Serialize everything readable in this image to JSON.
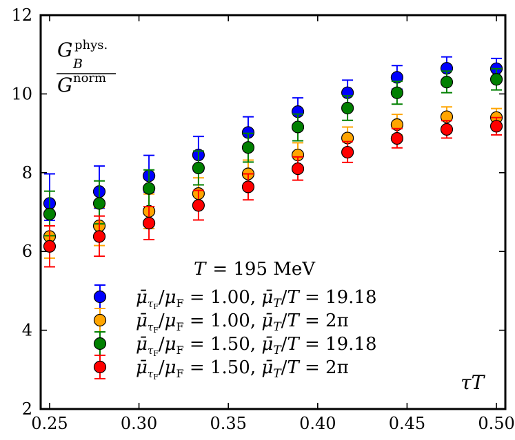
{
  "chart_data": {
    "type": "scatter",
    "title": "",
    "xlabel": "τT",
    "ylabel": "G_B^phys. / G^norm",
    "xlim": [
      0.245,
      0.505
    ],
    "ylim": [
      2,
      12
    ],
    "xticks": [
      "0.25",
      "0.30",
      "0.35",
      "0.40",
      "0.45",
      "0.50"
    ],
    "xtick_values": [
      0.25,
      0.3,
      0.35,
      0.4,
      0.45,
      0.5
    ],
    "yticks": [
      "2",
      "4",
      "6",
      "8",
      "10",
      "12"
    ],
    "ytick_values": [
      2,
      4,
      6,
      8,
      10,
      12
    ],
    "grid": false,
    "legend_placement": "bottom-left",
    "legend_title": {
      "lhs": "T",
      "rhs": "= 195 MeV"
    },
    "x": [
      0.25,
      0.2778,
      0.3056,
      0.3333,
      0.3611,
      0.3889,
      0.4167,
      0.4444,
      0.4722,
      0.5
    ],
    "series": [
      {
        "name": "μ̄_τF/μ_F = 1.00, μ̄_T/T = 19.18",
        "ratio": "1.00",
        "mu_t": "19.18",
        "color": "#0000ff",
        "values": [
          7.22,
          7.52,
          7.92,
          8.45,
          9.02,
          9.55,
          10.03,
          10.42,
          10.65,
          10.64
        ],
        "err_up": [
          0.75,
          0.65,
          0.52,
          0.47,
          0.4,
          0.35,
          0.32,
          0.3,
          0.29,
          0.26
        ],
        "err_down": [
          0.43,
          0.42,
          0.41,
          0.41,
          0.35,
          0.35,
          0.33,
          0.3,
          0.29,
          0.27
        ]
      },
      {
        "name": "μ̄_τF/μ_F = 1.00, μ̄_T/T = 2π",
        "ratio": "1.00",
        "mu_t": "2π",
        "color": "#ffa500",
        "values": [
          6.38,
          6.65,
          7.02,
          7.47,
          7.97,
          8.45,
          8.88,
          9.22,
          9.42,
          9.4
        ],
        "err_up": [
          0.5,
          0.47,
          0.44,
          0.4,
          0.35,
          0.31,
          0.28,
          0.26,
          0.25,
          0.23
        ],
        "err_down": [
          0.55,
          0.5,
          0.44,
          0.38,
          0.35,
          0.3,
          0.28,
          0.26,
          0.25,
          0.23
        ]
      },
      {
        "name": "μ̄_τF/μ_F = 1.50, μ̄_T/T = 19.18",
        "ratio": "1.50",
        "mu_t": "19.18",
        "color": "#008000",
        "values": [
          6.95,
          7.22,
          7.6,
          8.12,
          8.64,
          9.16,
          9.64,
          10.03,
          10.3,
          10.37
        ],
        "err_up": [
          0.58,
          0.57,
          0.47,
          0.43,
          0.36,
          0.33,
          0.31,
          0.29,
          0.28,
          0.27
        ],
        "err_down": [
          0.55,
          0.52,
          0.46,
          0.43,
          0.37,
          0.35,
          0.31,
          0.29,
          0.27,
          0.27
        ]
      },
      {
        "name": "μ̄_τF/μ_F = 1.50, μ̄_T/T = 2π",
        "ratio": "1.50",
        "mu_t": "2π",
        "color": "#ff0000",
        "values": [
          6.13,
          6.38,
          6.72,
          7.17,
          7.64,
          8.1,
          8.52,
          8.87,
          9.1,
          9.18
        ],
        "err_up": [
          0.52,
          0.52,
          0.42,
          0.38,
          0.33,
          0.3,
          0.27,
          0.25,
          0.22,
          0.22
        ],
        "err_down": [
          0.52,
          0.5,
          0.42,
          0.37,
          0.33,
          0.29,
          0.26,
          0.24,
          0.22,
          0.22
        ]
      }
    ]
  }
}
